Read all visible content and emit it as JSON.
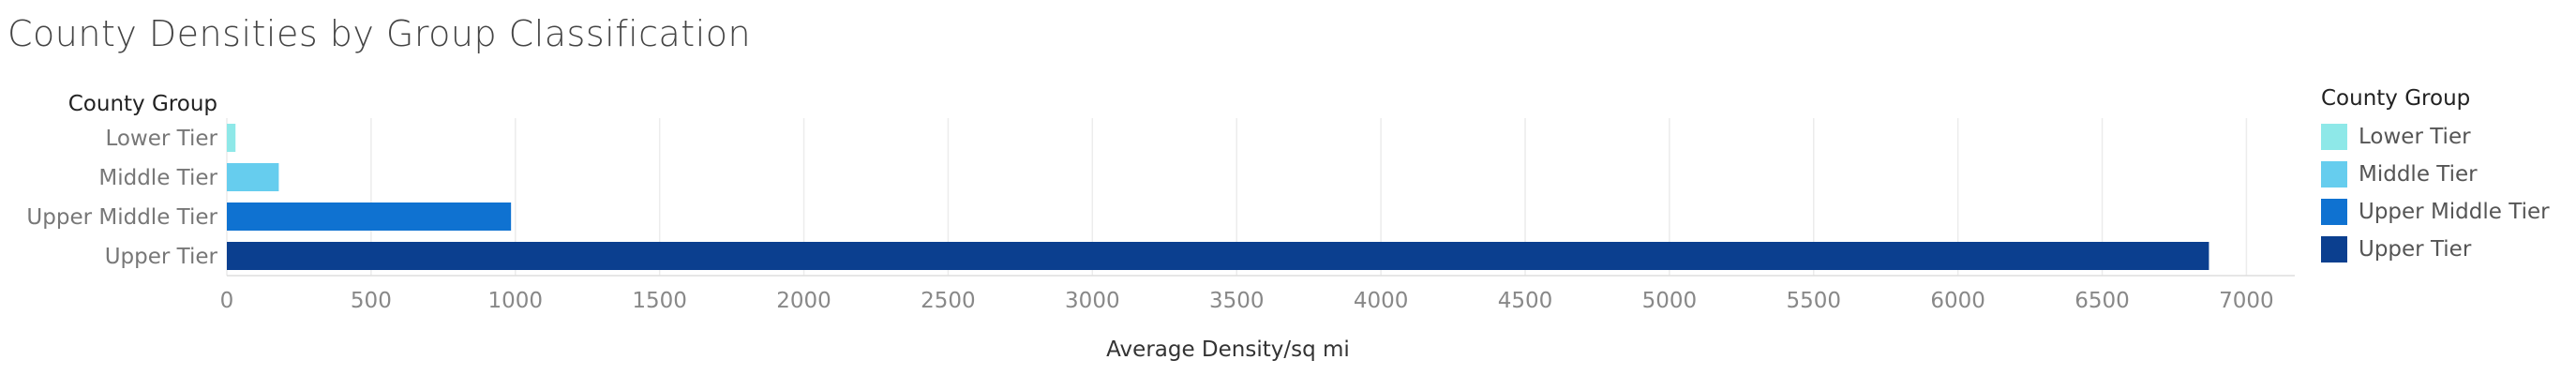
{
  "chart_data": {
    "type": "bar",
    "orientation": "horizontal",
    "title": "County Densities by Group Classification",
    "y_header": "County Group",
    "xlabel": "Average Density/sq mi",
    "categories": [
      "Lower Tier",
      "Middle Tier",
      "Upper Middle Tier",
      "Upper Tier"
    ],
    "values": [
      30,
      180,
      985,
      6870
    ],
    "colors": [
      "#8ee8e8",
      "#66cdee",
      "#0f72d1",
      "#0b3f8f"
    ],
    "x_ticks": [
      0,
      500,
      1000,
      1500,
      2000,
      2500,
      3000,
      3500,
      4000,
      4500,
      5000,
      5500,
      6000,
      6500,
      7000
    ],
    "xlim": [
      0,
      7200
    ],
    "grid": true,
    "legend": {
      "title": "County Group",
      "position": "right",
      "items": [
        "Lower Tier",
        "Middle Tier",
        "Upper Middle Tier",
        "Upper Tier"
      ]
    }
  }
}
